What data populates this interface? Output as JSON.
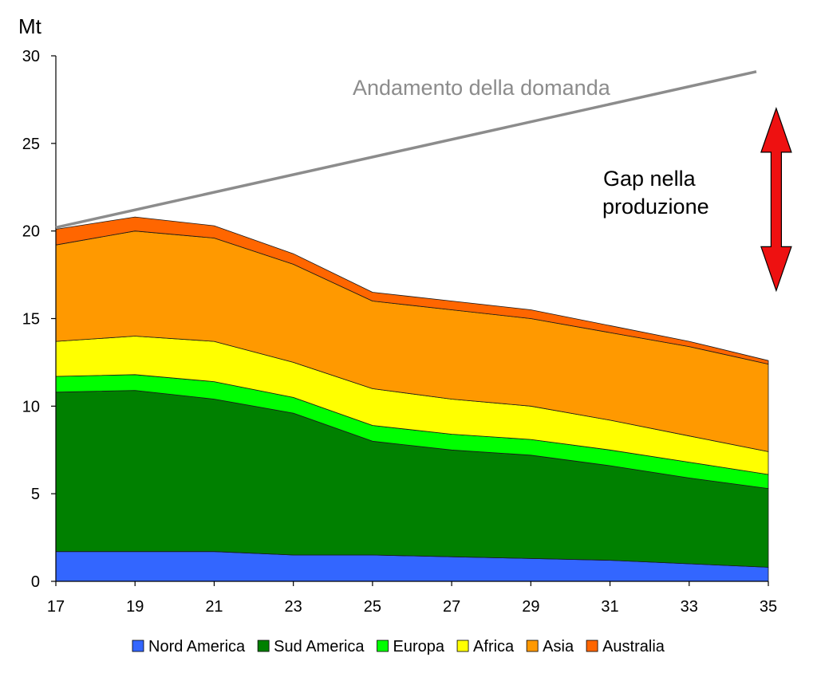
{
  "chart_data": {
    "type": "area",
    "stacked": true,
    "ylabel": "Mt",
    "ylim": [
      0,
      30
    ],
    "yticks": [
      0,
      5,
      10,
      15,
      20,
      25,
      30
    ],
    "x": [
      17,
      19,
      21,
      23,
      25,
      27,
      29,
      31,
      33,
      35
    ],
    "xticks": [
      "17",
      "19",
      "21",
      "23",
      "25",
      "27",
      "29",
      "31",
      "33",
      "35"
    ],
    "grid": false,
    "legend_position": "bottom",
    "series": [
      {
        "name": "Nord America",
        "color": "#3366ff",
        "values": [
          1.7,
          1.7,
          1.7,
          1.5,
          1.5,
          1.4,
          1.3,
          1.2,
          1.0,
          0.8
        ]
      },
      {
        "name": "Sud America",
        "color": "#008000",
        "values": [
          9.1,
          9.2,
          8.7,
          8.1,
          6.5,
          6.1,
          5.9,
          5.4,
          4.9,
          4.5
        ]
      },
      {
        "name": "Europa",
        "color": "#00ff00",
        "values": [
          0.9,
          0.9,
          1.0,
          0.9,
          0.9,
          0.9,
          0.9,
          0.9,
          0.9,
          0.8
        ]
      },
      {
        "name": "Africa",
        "color": "#ffff00",
        "values": [
          2.0,
          2.2,
          2.3,
          2.0,
          2.1,
          2.0,
          1.9,
          1.7,
          1.5,
          1.3
        ]
      },
      {
        "name": "Asia",
        "color": "#ff9900",
        "values": [
          5.5,
          6.0,
          5.9,
          5.6,
          5.0,
          5.1,
          5.0,
          5.0,
          5.1,
          5.0
        ]
      },
      {
        "name": "Australia",
        "color": "#ff6600",
        "values": [
          0.9,
          0.8,
          0.7,
          0.6,
          0.5,
          0.5,
          0.5,
          0.4,
          0.3,
          0.2
        ]
      }
    ],
    "demand_line": {
      "label": "Andamento della domanda",
      "color": "#8c8c8c",
      "x": [
        17,
        35
      ],
      "values": [
        20.2,
        29.1
      ]
    },
    "gap_annotation": {
      "line1": "Gap nella",
      "line2": "produzione",
      "arrow_color": "#ee1111",
      "x": 35.2,
      "y_range": [
        16.6,
        27.0
      ]
    }
  }
}
